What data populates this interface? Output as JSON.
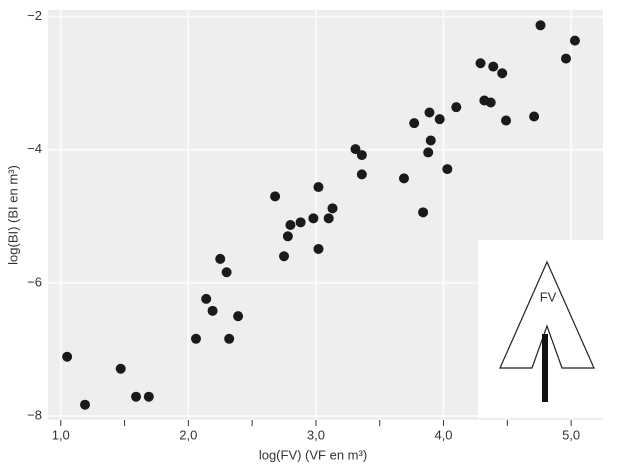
{
  "chart_data": {
    "type": "scatter",
    "x_label": "log(FV) (VF en m³)",
    "y_label": "log(BI) (BI en m³)",
    "xlim": [
      0.9,
      5.25
    ],
    "ylim": [
      -8.06,
      -1.9
    ],
    "xticks": [
      {
        "value": 1,
        "label": "1,0"
      },
      {
        "value": 2,
        "label": "2,0"
      },
      {
        "value": 3,
        "label": "3,0"
      },
      {
        "value": 4,
        "label": "4,0"
      },
      {
        "value": 5,
        "label": "5,0"
      }
    ],
    "xminorticks": [
      1.5,
      2.5,
      3.5,
      4.5
    ],
    "yticks": [
      {
        "value": -2,
        "label": "−2"
      },
      {
        "value": -4,
        "label": "−4"
      },
      {
        "value": -6,
        "label": "−6"
      },
      {
        "value": -8,
        "label": "−8"
      }
    ],
    "grid": true,
    "color": "#1a1a1a",
    "inset_label": "FV",
    "x": [
      1.05,
      1.19,
      1.47,
      1.59,
      1.69,
      2.06,
      2.14,
      2.19,
      2.25,
      2.3,
      2.32,
      2.39,
      2.68,
      2.75,
      2.78,
      2.8,
      2.88,
      2.98,
      3.02,
      3.02,
      3.1,
      3.13,
      3.31,
      3.36,
      3.36,
      3.69,
      3.77,
      3.84,
      3.88,
      3.89,
      3.9,
      3.97,
      4.03,
      4.1,
      4.29,
      4.32,
      4.37,
      4.39,
      4.46,
      4.49,
      4.71,
      4.76,
      4.96,
      5.03
    ],
    "values": [
      -7.11,
      -7.83,
      -7.29,
      -7.71,
      -7.71,
      -6.84,
      -6.24,
      -6.42,
      -5.64,
      -5.84,
      -6.84,
      -6.5,
      -4.7,
      -5.6,
      -5.3,
      -5.13,
      -5.09,
      -5.03,
      -4.56,
      -5.49,
      -5.03,
      -4.88,
      -3.99,
      -4.08,
      -4.37,
      -4.43,
      -3.6,
      -4.94,
      -4.04,
      -3.44,
      -3.86,
      -3.54,
      -4.29,
      -3.36,
      -2.7,
      -3.26,
      -3.29,
      -2.75,
      -2.85,
      -3.56,
      -3.5,
      -2.13,
      -2.63,
      -2.36
    ]
  }
}
